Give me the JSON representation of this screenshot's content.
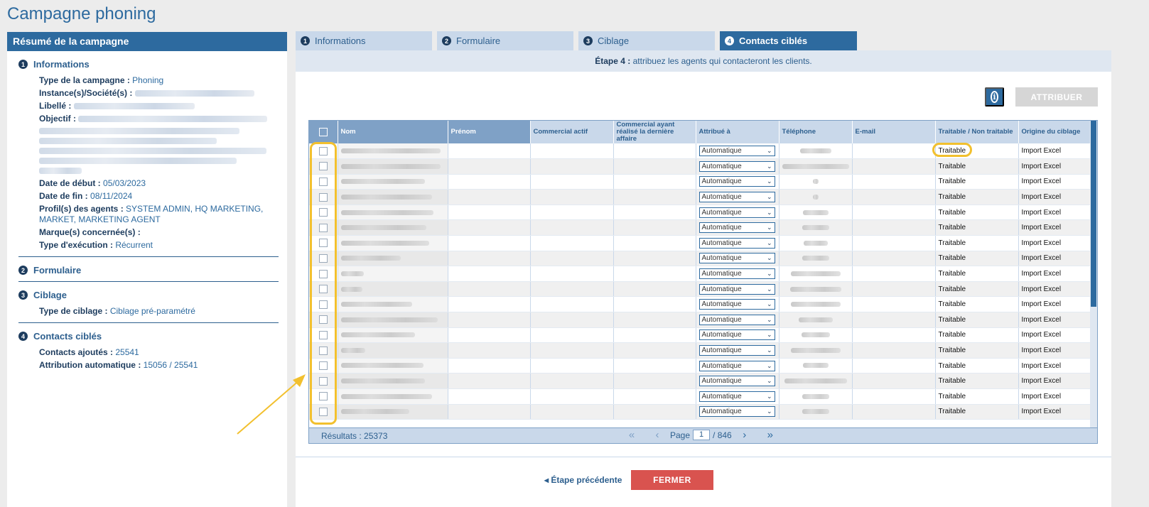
{
  "page": {
    "title": "Campagne phoning"
  },
  "summary": {
    "header": "Résumé de la campagne",
    "sections": {
      "informations": {
        "num": "1",
        "title": "Informations",
        "type_label": "Type de la campagne :",
        "type_value": "Phoning",
        "instance_label": "Instance(s)/Société(s) :",
        "libelle_label": "Libellé :",
        "objectif_label": "Objectif :",
        "date_debut_label": "Date de début :",
        "date_debut_value": "05/03/2023",
        "date_fin_label": "Date de fin :",
        "date_fin_value": "08/11/2024",
        "profils_label": "Profil(s) des agents :",
        "profils_value": "SYSTEM ADMIN, HQ MARKETING, MARKET, MARKETING AGENT",
        "marques_label": "Marque(s) concernée(s) :",
        "execution_label": "Type d'exécution :",
        "execution_value": "Récurrent"
      },
      "formulaire": {
        "num": "2",
        "title": "Formulaire"
      },
      "ciblage": {
        "num": "3",
        "title": "Ciblage",
        "type_label": "Type de ciblage :",
        "type_value": "Ciblage pré-paramétré"
      },
      "contacts": {
        "num": "4",
        "title": "Contacts ciblés",
        "ajoutes_label": "Contacts ajoutés :",
        "ajoutes_value": "25541",
        "auto_label": "Attribution automatique :",
        "auto_value": "15056 / 25541"
      }
    }
  },
  "tabs": [
    {
      "num": "1",
      "label": "Informations"
    },
    {
      "num": "2",
      "label": "Formulaire"
    },
    {
      "num": "3",
      "label": "Ciblage"
    },
    {
      "num": "4",
      "label": "Contacts ciblés"
    }
  ],
  "step": {
    "prefix": "Étape 4 :",
    "text": " attribuez les agents qui contacteront les clients."
  },
  "toolbar": {
    "attribuer_label": "ATTRIBUER",
    "info_glyph": "i"
  },
  "table": {
    "headers": {
      "nom": "Nom",
      "prenom": "Prénom",
      "commercial_actif": "Commercial actif",
      "commercial_derniere": "Commercial ayant réalisé la dernière affaire",
      "attribue": "Attribué à",
      "telephone": "Téléphone",
      "email": "E-mail",
      "traitable": "Traitable / Non traitable",
      "origine": "Origine du ciblage"
    },
    "rows": [
      {
        "attribue": "Automatique",
        "traitable": "Traitable",
        "origine": "Import Excel"
      },
      {
        "attribue": "Automatique",
        "traitable": "Traitable",
        "origine": "Import Excel"
      },
      {
        "attribue": "Automatique",
        "traitable": "Traitable",
        "origine": "Import Excel"
      },
      {
        "attribue": "Automatique",
        "traitable": "Traitable",
        "origine": "Import Excel"
      },
      {
        "attribue": "Automatique",
        "traitable": "Traitable",
        "origine": "Import Excel"
      },
      {
        "attribue": "Automatique",
        "traitable": "Traitable",
        "origine": "Import Excel"
      },
      {
        "attribue": "Automatique",
        "traitable": "Traitable",
        "origine": "Import Excel"
      },
      {
        "attribue": "Automatique",
        "traitable": "Traitable",
        "origine": "Import Excel"
      },
      {
        "attribue": "Automatique",
        "traitable": "Traitable",
        "origine": "Import Excel"
      },
      {
        "attribue": "Automatique",
        "traitable": "Traitable",
        "origine": "Import Excel"
      },
      {
        "attribue": "Automatique",
        "traitable": "Traitable",
        "origine": "Import Excel"
      },
      {
        "attribue": "Automatique",
        "traitable": "Traitable",
        "origine": "Import Excel"
      },
      {
        "attribue": "Automatique",
        "traitable": "Traitable",
        "origine": "Import Excel"
      },
      {
        "attribue": "Automatique",
        "traitable": "Traitable",
        "origine": "Import Excel"
      },
      {
        "attribue": "Automatique",
        "traitable": "Traitable",
        "origine": "Import Excel"
      },
      {
        "attribue": "Automatique",
        "traitable": "Traitable",
        "origine": "Import Excel"
      },
      {
        "attribue": "Automatique",
        "traitable": "Traitable",
        "origine": "Import Excel"
      },
      {
        "attribue": "Automatique",
        "traitable": "Traitable",
        "origine": "Import Excel"
      }
    ]
  },
  "pager": {
    "results": "Résultats : 25373",
    "page_label": "Page",
    "page_value": "1",
    "total": "/ 846"
  },
  "footer": {
    "prev_label": "Étape précédente",
    "close_label": "FERMER"
  },
  "colors": {
    "primary": "#2d6a9f",
    "light": "#c9d8ea",
    "danger": "#d9534f",
    "highlight": "#f2c02e"
  }
}
